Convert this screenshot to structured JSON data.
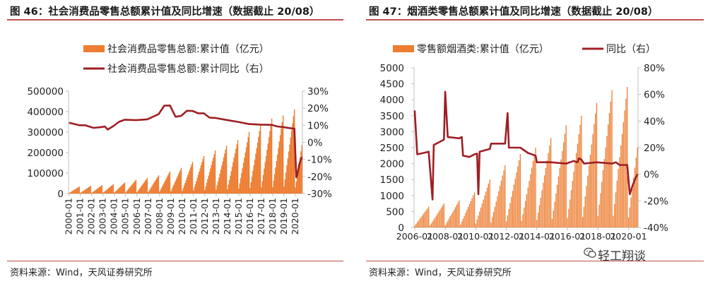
{
  "panels": {
    "left": {
      "title": "图 46：社会消费品零售总额累计值及同比增速（数据截止 20/08）",
      "source": "资料来源：Wind，天风证券研究所"
    },
    "right": {
      "title": "图 47：烟酒类零售总额累计值及同比增速（数据截止 20/08）",
      "source": "资料来源：Wind，天风证券研究所"
    }
  },
  "watermark": {
    "text": "轻工翔谈",
    "icon": "wechat-icon"
  },
  "colors": {
    "bar": "#ed7d31",
    "line": "#9e1f24",
    "rule": "#c0504d",
    "axis": "#bfbfbf"
  },
  "chart_data": [
    {
      "type": "bar+line",
      "legend_position": "top",
      "grid": false,
      "x_start": "2000-01",
      "x_end": "2020-08",
      "x_ticks": [
        "2000-01",
        "2001-01",
        "2002-01",
        "2003-01",
        "2004-01",
        "2005-01",
        "2006-01",
        "2007-01",
        "2008-01",
        "2009-01",
        "2010-01",
        "2011-01",
        "2012-01",
        "2013-01",
        "2014-01",
        "2015-01",
        "2016-01",
        "2017-01",
        "2018-01",
        "2019-01",
        "2020-01"
      ],
      "y_left_ticks": [
        "0",
        "100000",
        "200000",
        "300000",
        "400000",
        "500000"
      ],
      "y_left_range": [
        0,
        500000
      ],
      "y_right_ticks": [
        "-30%",
        "-20%",
        "-10%",
        "0%",
        "10%",
        "20%",
        "30%"
      ],
      "y_right_range": [
        -30,
        30
      ],
      "series": [
        {
          "name": "社会消费品零售总额:累计值（亿元）",
          "type": "bar",
          "axis": "left",
          "annual_totals": [
            34153,
            37595,
            40911,
            45842,
            53950,
            67177,
            76410,
            89210,
            108488,
            125343,
            154554,
            183919,
            210307,
            234380,
            262394,
            300931,
            332316,
            366262,
            380987,
            411649,
            235953
          ],
          "last_month": 8
        },
        {
          "name": "社会消费品零售总额:累计同比（右）",
          "type": "line",
          "axis": "right",
          "points": [
            [
              "2000-01",
              11.5
            ],
            [
              "2000-12",
              10.0
            ],
            [
              "2001-06",
              10.0
            ],
            [
              "2002-03",
              8.5
            ],
            [
              "2002-12",
              9.0
            ],
            [
              "2003-03",
              9.3
            ],
            [
              "2003-06",
              7.5
            ],
            [
              "2003-12",
              9.5
            ],
            [
              "2004-06",
              12.0
            ],
            [
              "2004-12",
              13.3
            ],
            [
              "2005-12",
              13.0
            ],
            [
              "2006-12",
              13.5
            ],
            [
              "2007-12",
              16.5
            ],
            [
              "2008-06",
              21.5
            ],
            [
              "2008-12",
              21.6
            ],
            [
              "2009-06",
              15.0
            ],
            [
              "2009-12",
              15.5
            ],
            [
              "2010-06",
              18.5
            ],
            [
              "2010-12",
              18.4
            ],
            [
              "2011-06",
              17.0
            ],
            [
              "2011-12",
              17.0
            ],
            [
              "2012-06",
              14.5
            ],
            [
              "2012-12",
              14.3
            ],
            [
              "2013-12",
              13.1
            ],
            [
              "2014-12",
              12.0
            ],
            [
              "2015-12",
              10.7
            ],
            [
              "2016-12",
              10.4
            ],
            [
              "2017-12",
              10.2
            ],
            [
              "2018-06",
              9.3
            ],
            [
              "2018-12",
              9.0
            ],
            [
              "2019-06",
              8.4
            ],
            [
              "2019-12",
              8.0
            ],
            [
              "2020-02",
              -20.5
            ],
            [
              "2020-03",
              -19.0
            ],
            [
              "2020-04",
              -16.2
            ],
            [
              "2020-05",
              -13.5
            ],
            [
              "2020-06",
              -11.4
            ],
            [
              "2020-07",
              -9.9
            ],
            [
              "2020-08",
              -8.6
            ]
          ]
        }
      ]
    },
    {
      "type": "bar+line",
      "legend_position": "top",
      "grid": false,
      "x_start": "2006-01",
      "x_end": "2020-08",
      "x_ticks": [
        "2006-01",
        "2008-01",
        "2010-01",
        "2012-01",
        "2014-01",
        "2016-01",
        "2018-01",
        "2020-01"
      ],
      "y_left_ticks": [
        "0",
        "500",
        "1000",
        "1500",
        "2000",
        "2500",
        "3000",
        "3500",
        "4000",
        "4500",
        "5000"
      ],
      "y_left_range": [
        0,
        5000
      ],
      "y_right_ticks": [
        "-40%",
        "-20%",
        "0%",
        "20%",
        "40%",
        "60%",
        "80%"
      ],
      "y_right_range": [
        -40,
        80
      ],
      "series": [
        {
          "name": "零售额烟酒类:累计值（亿元）",
          "type": "bar",
          "axis": "left",
          "annual_totals": [
            650,
            750,
            850,
            1100,
            1500,
            1950,
            2300,
            2500,
            2800,
            3200,
            3500,
            3900,
            4300,
            4400,
            2500
          ],
          "last_month": 8
        },
        {
          "name": "同比（右）",
          "type": "line",
          "axis": "right",
          "points": [
            [
              "2006-01",
              48
            ],
            [
              "2006-03",
              15
            ],
            [
              "2006-08",
              16
            ],
            [
              "2006-12",
              17
            ],
            [
              "2007-03",
              -19
            ],
            [
              "2007-04",
              22
            ],
            [
              "2007-08",
              24
            ],
            [
              "2007-12",
              26
            ],
            [
              "2008-01",
              62
            ],
            [
              "2008-03",
              28
            ],
            [
              "2008-12",
              27
            ],
            [
              "2009-02",
              28
            ],
            [
              "2009-03",
              14
            ],
            [
              "2009-08",
              13
            ],
            [
              "2009-12",
              15
            ],
            [
              "2010-02",
              15.5
            ],
            [
              "2010-03",
              -15
            ],
            [
              "2010-04",
              17
            ],
            [
              "2010-12",
              19
            ],
            [
              "2011-01",
              23
            ],
            [
              "2011-12",
              23
            ],
            [
              "2012-02",
              46
            ],
            [
              "2012-03",
              20
            ],
            [
              "2012-12",
              20
            ],
            [
              "2013-06",
              16
            ],
            [
              "2013-12",
              14
            ],
            [
              "2014-01",
              9
            ],
            [
              "2014-12",
              9
            ],
            [
              "2015-12",
              8
            ],
            [
              "2016-06",
              10
            ],
            [
              "2016-09",
              9
            ],
            [
              "2016-10",
              12
            ],
            [
              "2016-12",
              11
            ],
            [
              "2017-02",
              8
            ],
            [
              "2017-12",
              9
            ],
            [
              "2018-12",
              8
            ],
            [
              "2019-03",
              9
            ],
            [
              "2019-06",
              7
            ],
            [
              "2019-12",
              7
            ],
            [
              "2020-02",
              -15
            ],
            [
              "2020-04",
              -9
            ],
            [
              "2020-06",
              -4
            ],
            [
              "2020-08",
              0
            ]
          ]
        }
      ]
    }
  ]
}
